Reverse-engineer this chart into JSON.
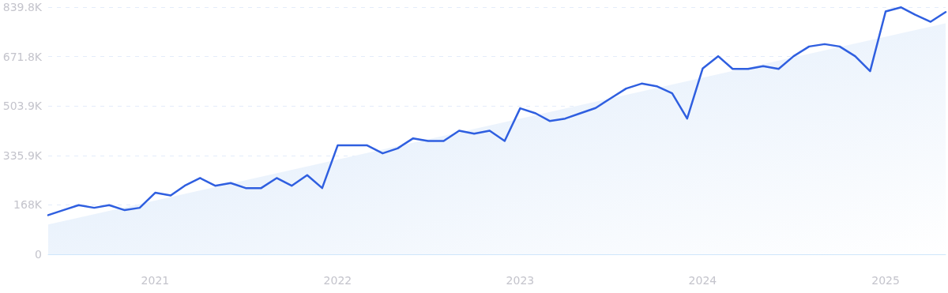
{
  "chart_data": {
    "type": "line",
    "x": [
      "2020-06",
      "2020-07",
      "2020-08",
      "2020-09",
      "2020-10",
      "2020-11",
      "2020-12",
      "2021-01",
      "2021-02",
      "2021-03",
      "2021-04",
      "2021-05",
      "2021-06",
      "2021-07",
      "2021-08",
      "2021-09",
      "2021-10",
      "2021-11",
      "2021-12",
      "2022-01",
      "2022-02",
      "2022-03",
      "2022-04",
      "2022-05",
      "2022-06",
      "2022-07",
      "2022-08",
      "2022-09",
      "2022-10",
      "2022-11",
      "2022-12",
      "2023-01",
      "2023-02",
      "2023-03",
      "2023-04",
      "2023-05",
      "2023-06",
      "2023-07",
      "2023-08",
      "2023-09",
      "2023-10",
      "2023-11",
      "2023-12",
      "2024-01",
      "2024-02",
      "2024-03",
      "2024-04",
      "2024-05",
      "2024-06",
      "2024-07",
      "2024-08",
      "2024-09",
      "2024-10",
      "2024-11",
      "2024-12",
      "2025-01",
      "2025-02",
      "2025-03",
      "2025-04",
      "2025-05"
    ],
    "series": [
      {
        "type": "area",
        "color": "#dbe9fa",
        "x": [
          "2020-06",
          "2025-05"
        ],
        "values": [
          101,
          785
        ]
      },
      {
        "color": "#2f5fe0",
        "values": [
          133,
          150,
          167,
          158,
          167,
          150,
          158,
          209,
          200,
          233,
          259,
          233,
          242,
          225,
          225,
          259,
          233,
          269,
          225,
          370,
          370,
          370,
          343,
          360,
          394,
          385,
          385,
          420,
          410,
          420,
          385,
          496,
          479,
          453,
          461,
          479,
          497,
          530,
          563,
          580,
          571,
          547,
          461,
          631,
          673,
          630,
          630,
          639,
          630,
          673,
          706,
          714,
          706,
          673,
          622,
          825,
          839,
          814,
          790,
          823
        ]
      }
    ],
    "xlim": [
      "2020-06",
      "2025-05"
    ],
    "xticks": [
      "2021",
      "2022",
      "2023",
      "2024",
      "2025"
    ],
    "ylim": [
      0,
      839.8
    ],
    "yticks": [
      0,
      {
        "value": 168,
        "label": "168K"
      },
      {
        "value": 335.9,
        "label": "335.9K"
      },
      {
        "value": 503.9,
        "label": "503.9K"
      },
      {
        "value": 671.8,
        "label": "671.8K"
      },
      {
        "value": 839.8,
        "label": "839.8K"
      }
    ],
    "grid": "y",
    "marker": "none",
    "line_style": "solid"
  }
}
